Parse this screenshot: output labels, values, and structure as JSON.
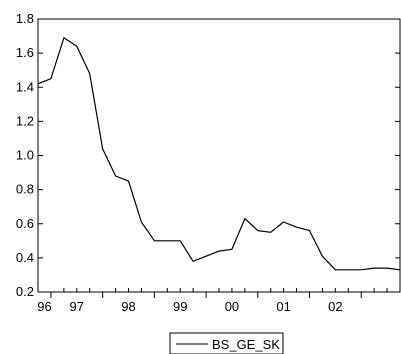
{
  "chart_data": {
    "type": "line",
    "title": "",
    "xlabel": "",
    "ylabel": "",
    "x_tick_labels": [
      "96",
      "97",
      "98",
      "99",
      "00",
      "01",
      "02"
    ],
    "y_tick_labels": [
      "0.2",
      "0.4",
      "0.6",
      "0.8",
      "1.0",
      "1.2",
      "1.4",
      "1.6",
      "1.8"
    ],
    "ylim": [
      0.2,
      1.8
    ],
    "xlim": [
      1995.75,
      2002.75
    ],
    "grid": false,
    "legend": {
      "position": "bottom-center",
      "entries": [
        "BS_GE_SK"
      ]
    },
    "series": [
      {
        "name": "BS_GE_SK",
        "color": "#000000",
        "x": [
          1995.75,
          1996.0,
          1996.25,
          1996.5,
          1996.75,
          1997.0,
          1997.25,
          1997.5,
          1997.75,
          1998.0,
          1998.25,
          1998.5,
          1998.75,
          1999.0,
          1999.25,
          1999.5,
          1999.75,
          2000.0,
          2000.25,
          2000.5,
          2000.75,
          2001.0,
          2001.25,
          2001.5,
          2001.75,
          2002.0,
          2002.25,
          2002.5,
          2002.75
        ],
        "y": [
          1.42,
          1.45,
          1.69,
          1.64,
          1.48,
          1.04,
          0.88,
          0.85,
          0.61,
          0.5,
          0.5,
          0.5,
          0.38,
          0.41,
          0.44,
          0.45,
          0.63,
          0.56,
          0.55,
          0.61,
          0.58,
          0.56,
          0.41,
          0.33,
          0.33,
          0.33,
          0.34,
          0.34,
          0.33
        ]
      }
    ]
  }
}
